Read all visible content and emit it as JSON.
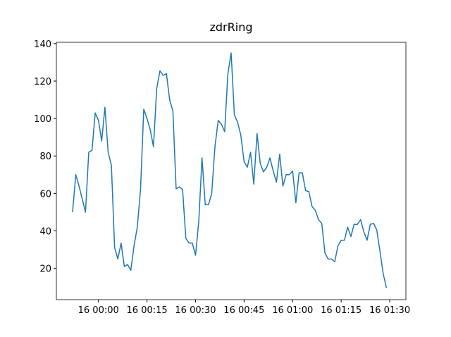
{
  "chart_data": {
    "type": "line",
    "title": "zdrRing",
    "x": [
      "15 23:52",
      "15 23:53",
      "15 23:54",
      "15 23:55",
      "15 23:56",
      "15 23:57",
      "15 23:58",
      "15 23:59",
      "16 00:00",
      "16 00:01",
      "16 00:02",
      "16 00:03",
      "16 00:04",
      "16 00:05",
      "16 00:06",
      "16 00:07",
      "16 00:08",
      "16 00:09",
      "16 00:10",
      "16 00:11",
      "16 00:12",
      "16 00:13",
      "16 00:14",
      "16 00:15",
      "16 00:16",
      "16 00:17",
      "16 00:18",
      "16 00:19",
      "16 00:20",
      "16 00:21",
      "16 00:22",
      "16 00:23",
      "16 00:24",
      "16 00:25",
      "16 00:26",
      "16 00:27",
      "16 00:28",
      "16 00:29",
      "16 00:30",
      "16 00:31",
      "16 00:32",
      "16 00:33",
      "16 00:34",
      "16 00:35",
      "16 00:36",
      "16 00:37",
      "16 00:38",
      "16 00:39",
      "16 00:40",
      "16 00:41",
      "16 00:42",
      "16 00:43",
      "16 00:44",
      "16 00:45",
      "16 00:46",
      "16 00:47",
      "16 00:48",
      "16 00:49",
      "16 00:50",
      "16 00:51",
      "16 00:52",
      "16 00:53",
      "16 00:54",
      "16 00:55",
      "16 00:56",
      "16 00:57",
      "16 00:58",
      "16 00:59",
      "16 01:00",
      "16 01:01",
      "16 01:02",
      "16 01:03",
      "16 01:04",
      "16 01:05",
      "16 01:06",
      "16 01:07",
      "16 01:08",
      "16 01:09",
      "16 01:10",
      "16 01:11",
      "16 01:12",
      "16 01:13",
      "16 01:14",
      "16 01:15",
      "16 01:16",
      "16 01:17",
      "16 01:18",
      "16 01:19",
      "16 01:20",
      "16 01:21",
      "16 01:22",
      "16 01:23",
      "16 01:24",
      "16 01:25",
      "16 01:26",
      "16 01:27",
      "16 01:28",
      "16 01:29"
    ],
    "series": [
      {
        "name": "zdrRing",
        "color": "#1f77b4",
        "values": [
          50,
          70,
          64,
          57,
          50,
          82,
          83,
          103,
          99,
          88,
          106,
          82,
          75,
          31,
          25,
          33.5,
          21,
          22,
          19,
          32,
          42,
          62,
          105,
          100,
          94,
          85,
          116,
          125.5,
          123,
          124,
          110,
          104,
          62.5,
          63.5,
          62,
          36,
          33.5,
          33.5,
          27,
          45,
          79,
          54,
          54,
          60,
          85,
          99,
          97,
          93,
          124,
          135,
          102,
          98,
          91,
          77,
          74,
          82,
          65,
          92,
          76,
          71.5,
          74,
          79,
          72,
          66,
          81,
          64,
          70,
          70,
          72,
          55,
          71,
          71,
          61.5,
          61,
          53,
          51,
          46,
          44,
          28,
          25,
          25,
          23.5,
          32,
          35,
          35,
          42,
          37,
          43.5,
          43.5,
          46,
          39.5,
          35,
          43.5,
          44,
          40.5,
          29,
          17,
          9.5
        ]
      }
    ],
    "xlim": [
      "15 23:47",
      "16 01:35"
    ],
    "xticks": [
      "16 00:00",
      "16 00:15",
      "16 00:30",
      "16 00:45",
      "16 01:00",
      "16 01:15",
      "16 01:30"
    ],
    "ylim": [
      3.3,
      140.7
    ],
    "yticks": [
      20,
      40,
      60,
      80,
      100,
      120,
      140
    ],
    "grid": false
  }
}
